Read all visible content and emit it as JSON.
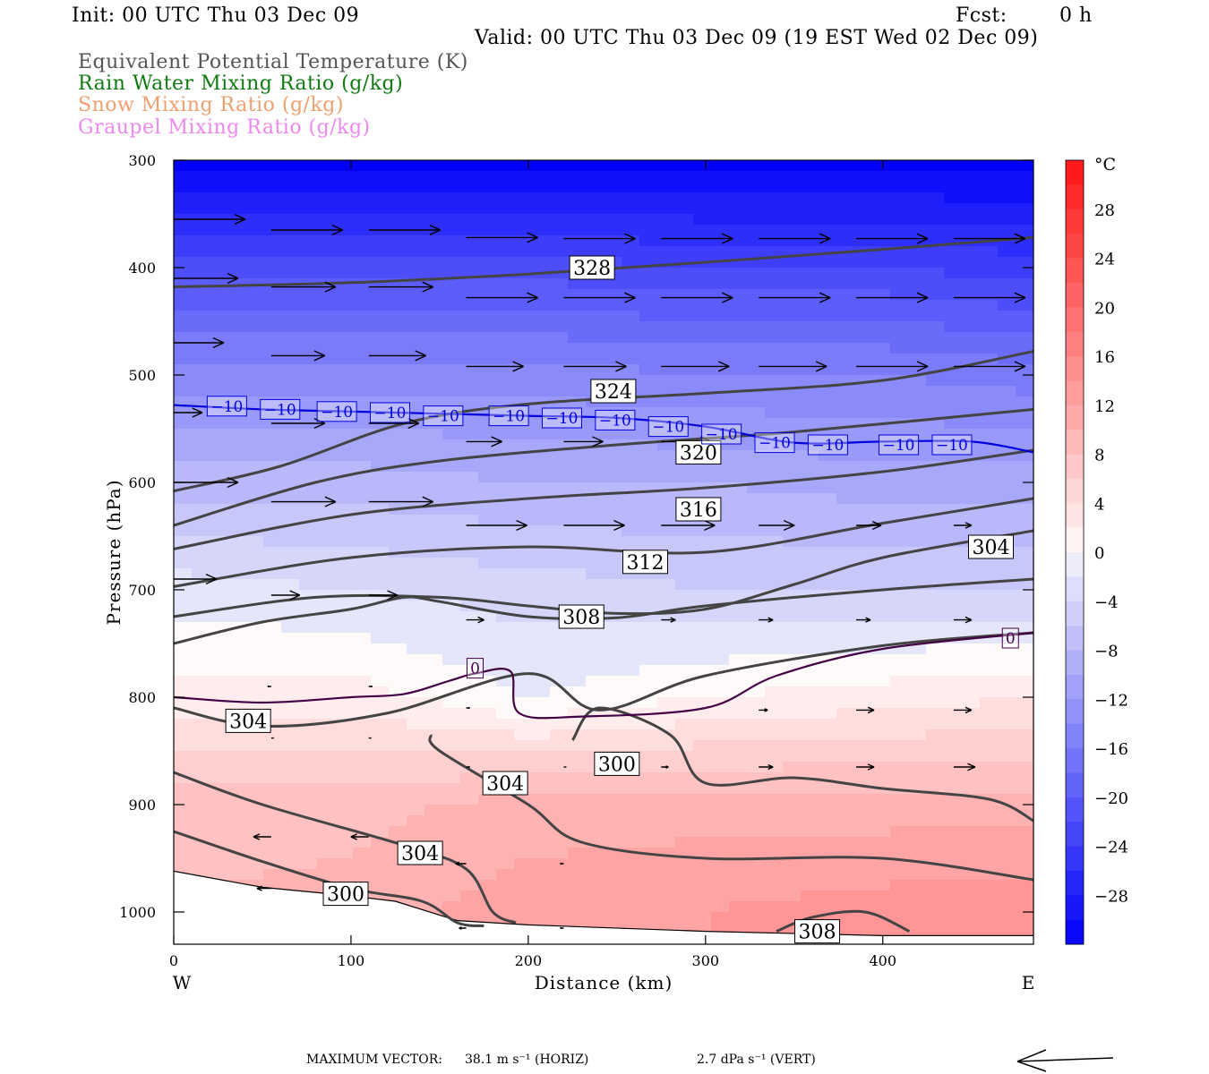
{
  "header": {
    "init": "Init: 00 UTC Thu 03 Dec 09",
    "fcst_label": "Fcst:",
    "fcst_value": "0 h",
    "valid": "Valid: 00 UTC Thu 03 Dec 09 (19 EST Wed 02 Dec 09)"
  },
  "legend": [
    {
      "text": "Equivalent Potential Temperature (K)",
      "color": "#555555"
    },
    {
      "text": "Rain Water Mixing Ratio (g/kg)",
      "color": "#0f7a0f"
    },
    {
      "text": "Snow Mixing Ratio (g/kg)",
      "color": "#f0a070"
    },
    {
      "text": "Graupel Mixing Ratio (g/kg)",
      "color": "#ee88ee"
    }
  ],
  "footer": {
    "max_vector_label": "MAXIMUM VECTOR:",
    "horiz": "38.1 m s⁻¹ (HORIZ)",
    "vert": "2.7 dPa s⁻¹ (VERT)"
  },
  "chart_data": {
    "type": "heatmap",
    "xlabel": "Distance (km)",
    "ylabel": "Pressure (hPa)",
    "xlim": [
      0,
      485
    ],
    "ylim": [
      1030,
      300
    ],
    "x_ticks": [
      "0",
      "100",
      "200",
      "300",
      "400"
    ],
    "x_tick_values": [
      0,
      100,
      200,
      300,
      400
    ],
    "y_ticks": [
      "300",
      "400",
      "500",
      "600",
      "700",
      "800",
      "900",
      "1000"
    ],
    "y_tick_values": [
      300,
      400,
      500,
      600,
      700,
      800,
      900,
      1000
    ],
    "x_ends": {
      "left": "W",
      "right": "E"
    },
    "colorbar": {
      "unit": "°C",
      "labels": [
        "28",
        "24",
        "20",
        "16",
        "12",
        "8",
        "4",
        "0",
        "−4",
        "−8",
        "−12",
        "−16",
        "−20",
        "−24",
        "−28"
      ],
      "label_values": [
        28,
        24,
        20,
        16,
        12,
        8,
        4,
        0,
        -4,
        -8,
        -12,
        -16,
        -20,
        -24,
        -28
      ],
      "range": [
        -32,
        32
      ]
    },
    "temperature_field": {
      "x": [
        0,
        100,
        200,
        300,
        400,
        485
      ],
      "p": [
        300,
        400,
        500,
        600,
        700,
        800,
        900,
        1000
      ],
      "values": [
        [
          -32,
          -32,
          -32,
          -32,
          -32,
          -32
        ],
        [
          -22,
          -22,
          -22,
          -23,
          -23,
          -24
        ],
        [
          -14,
          -14,
          -14,
          -15,
          -15,
          -16
        ],
        [
          -8,
          -8,
          -9,
          -9,
          -10,
          -10
        ],
        [
          -2,
          -3,
          -4,
          -5,
          -5,
          -5
        ],
        [
          2,
          2,
          -1,
          1,
          2,
          3
        ],
        [
          8,
          8,
          10,
          10,
          10,
          10
        ],
        [
          9,
          10,
          12,
          13,
          14,
          14
        ]
      ]
    },
    "theta_e_contours": [
      {
        "label": "328",
        "label_at": [
          236,
          400
        ],
        "points": [
          [
            0,
            418
          ],
          [
            100,
            414
          ],
          [
            200,
            406
          ],
          [
            300,
            395
          ],
          [
            400,
            383
          ],
          [
            485,
            372
          ]
        ]
      },
      {
        "label": "324",
        "label_at": [
          248,
          515
        ],
        "points": [
          [
            0,
            608
          ],
          [
            60,
            585
          ],
          [
            130,
            545
          ],
          [
            200,
            527
          ],
          [
            300,
            517
          ],
          [
            400,
            505
          ],
          [
            485,
            478
          ]
        ]
      },
      {
        "label": "320",
        "label_at": [
          296,
          572
        ],
        "points": [
          [
            0,
            640
          ],
          [
            80,
            600
          ],
          [
            150,
            580
          ],
          [
            250,
            565
          ],
          [
            350,
            553
          ],
          [
            485,
            532
          ]
        ]
      },
      {
        "label": "316",
        "label_at": [
          296,
          625
        ],
        "points": [
          [
            0,
            662
          ],
          [
            100,
            630
          ],
          [
            200,
            615
          ],
          [
            300,
            605
          ],
          [
            400,
            590
          ],
          [
            485,
            570
          ]
        ]
      },
      {
        "label": "312",
        "label_at": [
          266,
          674
        ],
        "points": [
          [
            0,
            697
          ],
          [
            100,
            670
          ],
          [
            200,
            660
          ],
          [
            300,
            665
          ],
          [
            400,
            638
          ],
          [
            485,
            615
          ]
        ]
      },
      {
        "label": "308",
        "label_at": [
          230,
          725
        ],
        "points": [
          [
            0,
            725
          ],
          [
            80,
            707
          ],
          [
            150,
            707
          ],
          [
            200,
            715
          ],
          [
            250,
            722
          ],
          [
            300,
            718
          ],
          [
            350,
            695
          ],
          [
            400,
            670
          ],
          [
            485,
            645
          ]
        ]
      },
      {
        "label": "304",
        "label_at": [
          461,
          660
        ],
        "points": [
          [
            0,
            750
          ],
          [
            50,
            730
          ],
          [
            100,
            718
          ],
          [
            130,
            707
          ],
          [
            150,
            711
          ],
          [
            200,
            725
          ],
          [
            250,
            726
          ],
          [
            300,
            715
          ],
          [
            400,
            700
          ],
          [
            485,
            690
          ]
        ]
      },
      {
        "label": "304",
        "label_at": [
          42,
          822
        ],
        "points": [
          [
            0,
            810
          ],
          [
            50,
            827
          ],
          [
            120,
            815
          ],
          [
            200,
            778
          ],
          [
            240,
            812
          ],
          [
            300,
            780
          ],
          [
            400,
            752
          ],
          [
            485,
            740
          ]
        ]
      },
      {
        "label": "300",
        "label_at": [
          250,
          862
        ],
        "points": [
          [
            225,
            840
          ],
          [
            240,
            810
          ],
          [
            280,
            835
          ],
          [
            300,
            880
          ],
          [
            350,
            875
          ],
          [
            400,
            885
          ],
          [
            460,
            895
          ],
          [
            485,
            915
          ]
        ]
      },
      {
        "label": "304",
        "label_at": [
          187,
          880
        ],
        "points": [
          [
            145,
            835
          ],
          [
            150,
            850
          ],
          [
            200,
            900
          ],
          [
            230,
            935
          ],
          [
            300,
            950
          ],
          [
            400,
            950
          ],
          [
            485,
            970
          ]
        ]
      },
      {
        "label": "304",
        "label_at": [
          139,
          945
        ],
        "points": [
          [
            0,
            870
          ],
          [
            50,
            900
          ],
          [
            130,
            938
          ],
          [
            165,
            960
          ],
          [
            180,
            1000
          ],
          [
            193,
            1010
          ]
        ]
      },
      {
        "label": "300",
        "label_at": [
          97,
          983
        ],
        "points": [
          [
            0,
            925
          ],
          [
            50,
            953
          ],
          [
            100,
            978
          ],
          [
            140,
            990
          ],
          [
            160,
            1010
          ],
          [
            175,
            1013
          ]
        ]
      },
      {
        "label": "308",
        "label_at": [
          363,
          1018
        ],
        "points": [
          [
            340,
            1018
          ],
          [
            360,
            1005
          ],
          [
            390,
            1000
          ],
          [
            415,
            1018
          ]
        ]
      }
    ],
    "isotherms": [
      {
        "label": "−10",
        "color": "#0000dd",
        "points": [
          [
            0,
            528
          ],
          [
            50,
            532
          ],
          [
            100,
            534
          ],
          [
            150,
            536
          ],
          [
            200,
            538
          ],
          [
            250,
            540
          ],
          [
            300,
            548
          ],
          [
            350,
            563
          ],
          [
            400,
            562
          ],
          [
            450,
            562
          ],
          [
            485,
            572
          ]
        ]
      },
      {
        "label": "0",
        "color": "#440044",
        "points": [
          [
            0,
            800
          ],
          [
            50,
            805
          ],
          [
            100,
            800
          ],
          [
            130,
            797
          ],
          [
            155,
            785
          ],
          [
            170,
            778
          ],
          [
            190,
            776
          ],
          [
            195,
            815
          ],
          [
            230,
            818
          ],
          [
            300,
            810
          ],
          [
            340,
            780
          ],
          [
            400,
            755
          ],
          [
            485,
            740
          ]
        ]
      }
    ],
    "isotherm_label_positions": {
      "−10": [
        [
          30,
          529
        ],
        [
          60,
          532
        ],
        [
          92,
          534
        ],
        [
          122,
          535
        ],
        [
          152,
          538
        ],
        [
          189,
          538
        ],
        [
          219,
          540
        ],
        [
          249,
          542
        ],
        [
          279,
          548
        ],
        [
          309,
          555
        ],
        [
          339,
          563
        ],
        [
          369,
          565
        ],
        [
          409,
          565
        ],
        [
          439,
          565
        ]
      ],
      "0": [
        [
          170,
          773
        ],
        [
          472,
          745
        ]
      ]
    },
    "terrain": [
      [
        0,
        962
      ],
      [
        50,
        977
      ],
      [
        100,
        985
      ],
      [
        125,
        990
      ],
      [
        160,
        1008
      ],
      [
        200,
        1012
      ],
      [
        300,
        1018
      ],
      [
        400,
        1022
      ],
      [
        485,
        1022
      ]
    ],
    "wind_vectors": [
      [
        0,
        355,
        40
      ],
      [
        55,
        365,
        40
      ],
      [
        110,
        365,
        40
      ],
      [
        165,
        372,
        40
      ],
      [
        220,
        373,
        40
      ],
      [
        275,
        373,
        40
      ],
      [
        330,
        373,
        40
      ],
      [
        385,
        373,
        40
      ],
      [
        440,
        373,
        40
      ],
      [
        0,
        410,
        36
      ],
      [
        55,
        418,
        36
      ],
      [
        110,
        418,
        36
      ],
      [
        165,
        428,
        40
      ],
      [
        220,
        428,
        40
      ],
      [
        275,
        428,
        40
      ],
      [
        330,
        428,
        40
      ],
      [
        385,
        428,
        40
      ],
      [
        440,
        428,
        40
      ],
      [
        0,
        470,
        28
      ],
      [
        55,
        482,
        30
      ],
      [
        110,
        482,
        32
      ],
      [
        165,
        492,
        32
      ],
      [
        220,
        492,
        35
      ],
      [
        275,
        492,
        38
      ],
      [
        330,
        492,
        38
      ],
      [
        385,
        492,
        40
      ],
      [
        440,
        492,
        40
      ],
      [
        0,
        535,
        16
      ],
      [
        55,
        545,
        30
      ],
      [
        110,
        545,
        28
      ],
      [
        165,
        562,
        20
      ],
      [
        220,
        562,
        22
      ],
      [
        275,
        562,
        28
      ],
      [
        0,
        600,
        36
      ],
      [
        55,
        618,
        36
      ],
      [
        110,
        618,
        36
      ],
      [
        165,
        640,
        34
      ],
      [
        220,
        640,
        34
      ],
      [
        275,
        640,
        30
      ],
      [
        330,
        640,
        20
      ],
      [
        385,
        640,
        14
      ],
      [
        440,
        640,
        10
      ],
      [
        0,
        690,
        24
      ],
      [
        55,
        705,
        16
      ],
      [
        110,
        705,
        16
      ],
      [
        165,
        728,
        10
      ],
      [
        220,
        728,
        8
      ],
      [
        275,
        728,
        8
      ],
      [
        330,
        728,
        8
      ],
      [
        385,
        728,
        8
      ],
      [
        440,
        728,
        10
      ],
      [
        55,
        790,
        -2
      ],
      [
        110,
        790,
        2
      ],
      [
        165,
        810,
        2
      ],
      [
        330,
        812,
        5
      ],
      [
        385,
        812,
        10
      ],
      [
        440,
        812,
        10
      ],
      [
        55,
        838,
        1
      ],
      [
        110,
        838,
        1
      ],
      [
        165,
        865,
        2
      ],
      [
        220,
        865,
        1
      ],
      [
        275,
        865,
        4
      ],
      [
        330,
        865,
        8
      ],
      [
        385,
        865,
        10
      ],
      [
        440,
        865,
        12
      ],
      [
        55,
        930,
        -10
      ],
      [
        110,
        930,
        -10
      ],
      [
        165,
        955,
        -6
      ],
      [
        220,
        955,
        -2
      ],
      [
        55,
        978,
        -8
      ],
      [
        165,
        1015,
        -4
      ],
      [
        220,
        1015,
        -2
      ]
    ],
    "wind_vector_units": "[distance km, pressure hPa, horizontal component m/s]"
  }
}
